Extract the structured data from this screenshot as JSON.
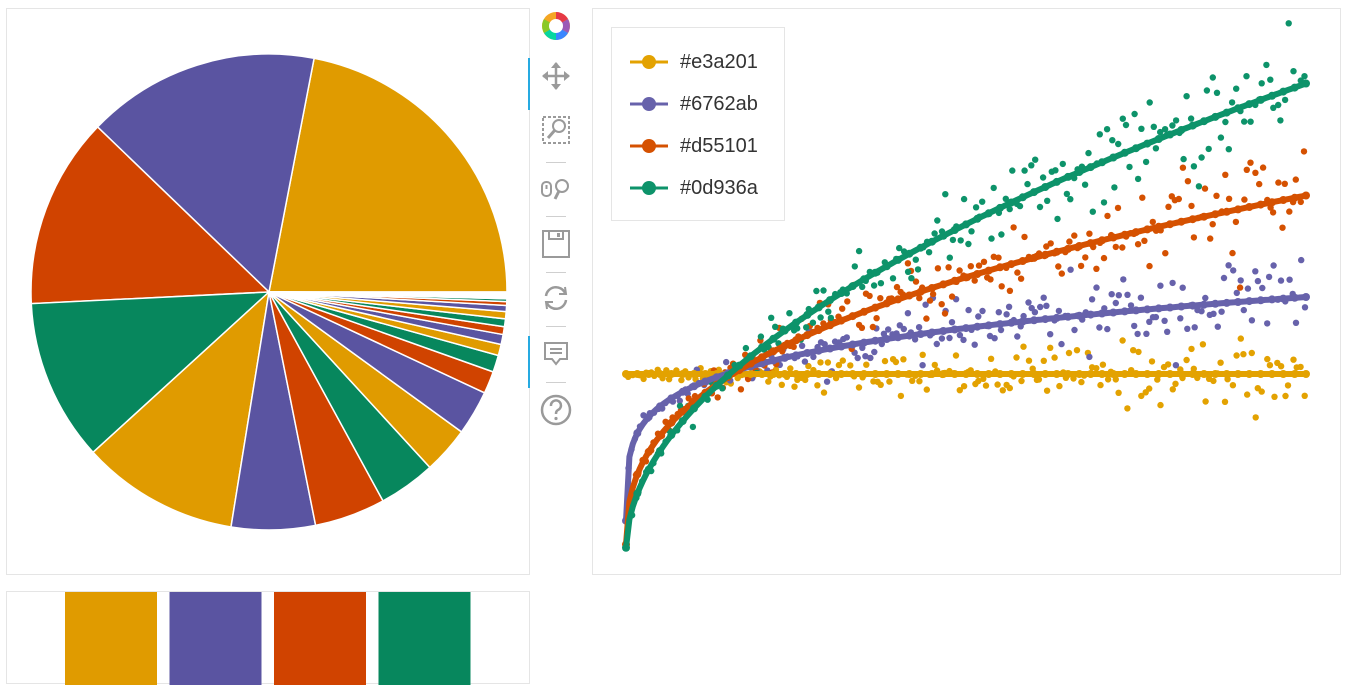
{
  "toolbar": {
    "tools": [
      {
        "name": "bokeh-logo-icon"
      },
      {
        "name": "pan-tool-icon"
      },
      {
        "name": "box-zoom-tool-icon"
      },
      {
        "name": "wheel-zoom-tool-icon"
      },
      {
        "name": "save-tool-icon"
      },
      {
        "name": "reset-tool-icon"
      },
      {
        "name": "hover-tool-icon"
      },
      {
        "name": "help-tool-icon"
      }
    ]
  },
  "palette": [
    "#e3a201",
    "#6762ab",
    "#d55101",
    "#0d936a"
  ],
  "colors": {
    "orange": "#e09b00",
    "purple": "#5a54a1",
    "red": "#d04300",
    "green": "#07875d"
  },
  "chart_data": [
    {
      "type": "pie",
      "title": "",
      "slices": [
        0.22,
        0.1586,
        0.13,
        0.11,
        0.107,
        0.057,
        0.0482,
        0.0387,
        0.0319,
        0.0304,
        0.0152,
        0.0115,
        0.0076,
        0.0068,
        0.0053,
        0.0053,
        0.0049,
        0.0041,
        0.0026,
        0.0019
      ],
      "colors": [
        "#e09b00",
        "#5a54a1",
        "#d04300",
        "#07875d"
      ],
      "tail_slices": {
        "count": 12,
        "each": 0.00038
      }
    },
    {
      "type": "table",
      "title": "",
      "swatches": [
        "#e09b00",
        "#5a54a1",
        "#d04300",
        "#07875d"
      ]
    },
    {
      "type": "scatter",
      "title": "",
      "legend": [
        "#e3a201",
        "#6762ab",
        "#d55101",
        "#0d936a"
      ],
      "legend_position": "top-left",
      "x_range": [
        0,
        10
      ],
      "y_range": [
        0,
        1.48
      ],
      "grid": false,
      "series": [
        {
          "name": "#e3a201",
          "line_y": "0.5",
          "x_range": [
            0,
            10
          ],
          "points": 180
        },
        {
          "name": "#6762ab",
          "line_y": "0.45*log(1+3x)+ sqrt-ish to 0.72",
          "x_range": [
            0,
            10
          ],
          "points": 180,
          "end_value": 0.72
        },
        {
          "name": "#d55101",
          "line_y": "rises to 1.0",
          "x_range": [
            0,
            10
          ],
          "points": 180,
          "end_value": 1.01
        },
        {
          "name": "#0d936a",
          "line_y": "rises to 1.33",
          "x_range": [
            0,
            10
          ],
          "points": 180,
          "end_value": 1.33
        }
      ]
    }
  ]
}
